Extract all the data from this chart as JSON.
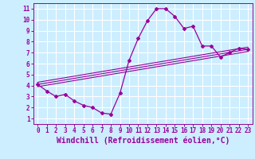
{
  "xlabel": "Windchill (Refroidissement éolien,°C)",
  "background_color": "#cceeff",
  "grid_color": "#aaddcc",
  "line_color": "#990099",
  "xlim": [
    -0.5,
    23.5
  ],
  "ylim": [
    0.5,
    11.5
  ],
  "xticks": [
    0,
    1,
    2,
    3,
    4,
    5,
    6,
    7,
    8,
    9,
    10,
    11,
    12,
    13,
    14,
    15,
    16,
    17,
    18,
    19,
    20,
    21,
    22,
    23
  ],
  "yticks": [
    1,
    2,
    3,
    4,
    5,
    6,
    7,
    8,
    9,
    10,
    11
  ],
  "curve_x": [
    0,
    1,
    2,
    3,
    4,
    5,
    6,
    7,
    8,
    9,
    10,
    11,
    12,
    13,
    14,
    15,
    16,
    17,
    18,
    19,
    20,
    21,
    22,
    23
  ],
  "curve_y": [
    4.1,
    3.5,
    3.0,
    3.2,
    2.6,
    2.2,
    2.0,
    1.5,
    1.4,
    3.3,
    6.3,
    8.3,
    9.9,
    11.0,
    11.0,
    10.3,
    9.2,
    9.4,
    7.6,
    7.6,
    6.6,
    7.0,
    7.4,
    7.3
  ],
  "line1_x": [
    0,
    23
  ],
  "line1_y": [
    4.3,
    7.5
  ],
  "line2_x": [
    0,
    23
  ],
  "line2_y": [
    4.1,
    7.3
  ],
  "line3_x": [
    0,
    23
  ],
  "line3_y": [
    3.9,
    7.1
  ],
  "tick_fontsize": 5.5,
  "xlabel_fontsize": 7
}
